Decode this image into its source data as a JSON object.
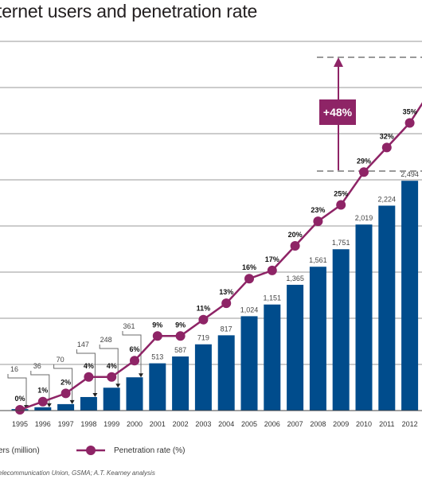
{
  "title": "ternet users and penetration rate",
  "source": "elecommunication Union, GSMA; A.T. Kearney analysis",
  "legend": {
    "bars_label": "ers (million)",
    "line_label": "Penetration rate (%)"
  },
  "annotation": {
    "text": "+48%"
  },
  "colors": {
    "bar": "#004c8c",
    "line": "#8e2466",
    "grid": "#9a9a9a"
  },
  "chart_data": {
    "type": "bar",
    "categories": [
      "1995",
      "1996",
      "1997",
      "1998",
      "1999",
      "2000",
      "2001",
      "2002",
      "2003",
      "2004",
      "2005",
      "2006",
      "2007",
      "2008",
      "2009",
      "2010",
      "2011",
      "2012"
    ],
    "series": [
      {
        "name": "ers (million)",
        "type": "bar",
        "values": [
          16,
          36,
          70,
          147,
          248,
          361,
          513,
          587,
          719,
          817,
          1024,
          1151,
          1365,
          1561,
          1751,
          2019,
          2224,
          2494
        ],
        "labels": [
          "16",
          "36",
          "70",
          "147",
          "248",
          "361",
          "513",
          "587",
          "719",
          "817",
          "1,024",
          "1,151",
          "1,365",
          "1,561",
          "1,751",
          "2,019",
          "2,224",
          "2,494"
        ]
      },
      {
        "name": "Penetration rate (%)",
        "type": "line",
        "values": [
          0,
          1,
          2,
          4,
          4,
          6,
          9,
          9,
          11,
          13,
          16,
          17,
          20,
          23,
          25,
          29,
          32,
          35
        ],
        "labels": [
          "0%",
          "1%",
          "2%",
          "4%",
          "4%",
          "6%",
          "9%",
          "9%",
          "11%",
          "13%",
          "16%",
          "17%",
          "20%",
          "23%",
          "25%",
          "29%",
          "32%",
          "35%"
        ]
      }
    ],
    "ylim": [
      0,
      4000
    ],
    "grid": true,
    "legend_position": "bottom-left"
  }
}
